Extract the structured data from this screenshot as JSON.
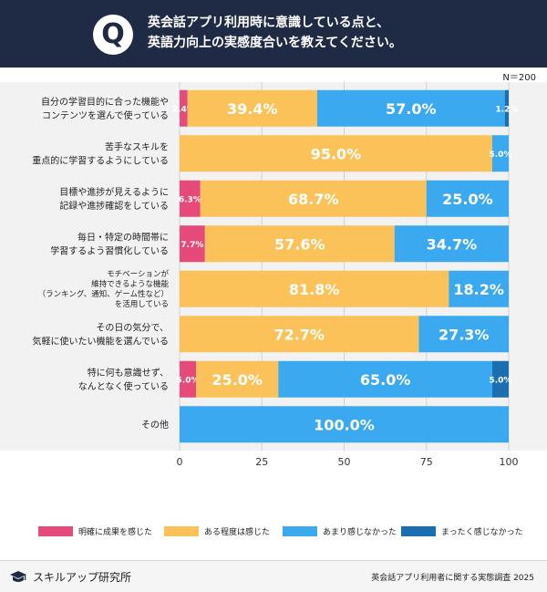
{
  "header": {
    "q_mark": "Q",
    "title_line1": "英会話アプリ利用時に意識している点と、",
    "title_line2": "英語力向上の実感度合いを教えてください。"
  },
  "sample_size": "N＝200",
  "chart_data": {
    "type": "bar",
    "orientation": "horizontal",
    "stacked": true,
    "categories": [
      [
        "自分の学習目的に合った機能や",
        "コンテンツを選んで使っている"
      ],
      [
        "苦手なスキルを",
        "重点的に学習するようにしている"
      ],
      [
        "目標や進捗が見えるように",
        "記録や進捗確認をしている"
      ],
      [
        "毎日・特定の時間帯に",
        "学習するよう習慣化している"
      ],
      [
        "モチベーションが",
        "維持できるような機能",
        "（ランキング、通知、ゲーム性など）",
        "を活用している"
      ],
      [
        "その日の気分で、",
        "気軽に使いたい機能を選んでいる"
      ],
      [
        "特に何も意識せず、",
        "なんとなく使っている"
      ],
      [
        "その他"
      ]
    ],
    "series": [
      {
        "name": "明確に成果を感じた",
        "color": "#e54a7a",
        "values": [
          2.4,
          0,
          6.3,
          7.7,
          0,
          0,
          5.0,
          0
        ]
      },
      {
        "name": "ある程度は感じた",
        "color": "#fbc259",
        "values": [
          39.4,
          95.0,
          68.7,
          57.6,
          81.8,
          72.7,
          25.0,
          0
        ]
      },
      {
        "name": "あまり感じなかった",
        "color": "#3aa9ef",
        "values": [
          57.0,
          5.0,
          25.0,
          34.7,
          18.2,
          27.3,
          65.0,
          100.0
        ]
      },
      {
        "name": "まったく感じなかった",
        "color": "#1a6fb0",
        "values": [
          1.2,
          0,
          0,
          0,
          0,
          0,
          5.0,
          0
        ]
      }
    ],
    "labels": [
      [
        "2.4%",
        "39.4%",
        "57.0%",
        "1.2%"
      ],
      [
        "",
        "95.0%",
        "5.0%",
        ""
      ],
      [
        "6.3%",
        "68.7%",
        "25.0%",
        ""
      ],
      [
        "7.7%",
        "57.6%",
        "34.7%",
        ""
      ],
      [
        "",
        "81.8%",
        "18.2%",
        ""
      ],
      [
        "",
        "72.7%",
        "27.3%",
        ""
      ],
      [
        "5.0%",
        "25.0%",
        "65.0%",
        "5.0%"
      ],
      [
        "",
        "",
        "100.0%",
        ""
      ]
    ],
    "xlim": [
      0,
      100
    ],
    "xticks": [
      0,
      25,
      50,
      75,
      100
    ],
    "grid": true,
    "legend_position": "bottom"
  },
  "footer": {
    "brand": "スキルアップ研究所",
    "source": "英会話アプリ利用者に関する実態調査 2025"
  }
}
